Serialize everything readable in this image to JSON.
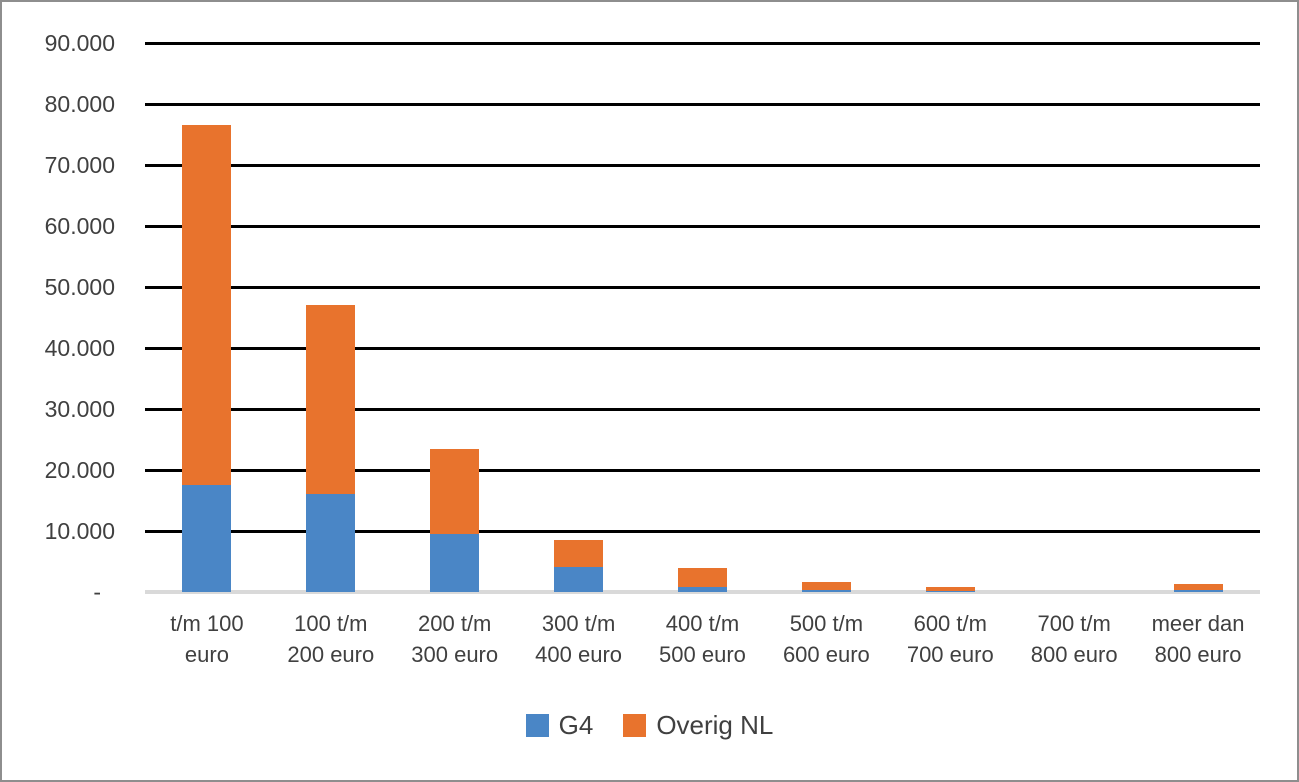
{
  "chart_data": {
    "type": "bar",
    "stacked": true,
    "title": "",
    "xlabel": "",
    "ylabel": "",
    "grid": true,
    "legend_position": "bottom",
    "categories": [
      [
        "t/m 100",
        "euro"
      ],
      [
        "100 t/m",
        "200 euro"
      ],
      [
        "200 t/m",
        "300 euro"
      ],
      [
        "300 t/m",
        "400 euro"
      ],
      [
        "400 t/m",
        "500 euro"
      ],
      [
        "500 t/m",
        "600 euro"
      ],
      [
        "600 t/m",
        "700 euro"
      ],
      [
        "700 t/m",
        "800 euro"
      ],
      [
        "meer dan",
        "800 euro"
      ]
    ],
    "series": [
      {
        "name": "G4",
        "color": "#4A86C6",
        "values": [
          17500,
          16000,
          9500,
          4100,
          900,
          400,
          200,
          0,
          300
        ]
      },
      {
        "name": "Overig NL",
        "color": "#E8732D",
        "values": [
          59000,
          31000,
          14000,
          4400,
          3000,
          1200,
          600,
          0,
          1000
        ]
      }
    ],
    "totals": [
      76500,
      47000,
      23500,
      8500,
      3900,
      1600,
      800,
      0,
      1300
    ],
    "y_axis": {
      "min": 0,
      "max": 90000,
      "step": 10000,
      "tick_labels": [
        "-",
        "10.000",
        "20.000",
        "30.000",
        "40.000",
        "50.000",
        "60.000",
        "70.000",
        "80.000",
        "90.000"
      ]
    }
  },
  "colors": {
    "gridline": "#000000",
    "axis_line": "#D9D9D9",
    "text": "#404040",
    "frame_border": "#8E8E8E",
    "background": "#FFFFFF"
  }
}
